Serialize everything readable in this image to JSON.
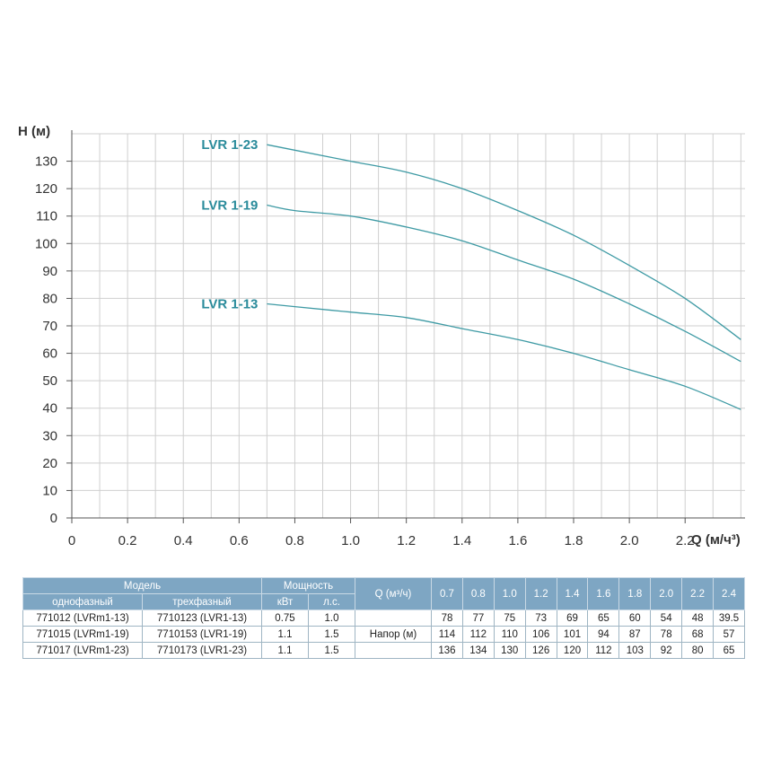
{
  "chart_data": {
    "type": "line",
    "title": "",
    "xlabel": "Q (м/ч³)",
    "ylabel": "H (м)",
    "xlim": [
      0,
      2.4
    ],
    "ylim": [
      0,
      140
    ],
    "x_ticks": [
      "0",
      "0.2",
      "0.4",
      "0.6",
      "0.8",
      "1.0",
      "1.2",
      "1.4",
      "1.6",
      "1.8",
      "2.0",
      "2.2"
    ],
    "y_ticks": [
      "0",
      "10",
      "20",
      "30",
      "40",
      "50",
      "60",
      "70",
      "80",
      "90",
      "100",
      "110",
      "120",
      "130"
    ],
    "grid": true,
    "x": [
      0.7,
      0.8,
      1.0,
      1.2,
      1.4,
      1.6,
      1.8,
      2.0,
      2.2,
      2.4
    ],
    "series": [
      {
        "name": "LVR 1-23",
        "values": [
          136,
          134,
          130,
          126,
          120,
          112,
          103,
          92,
          80,
          65
        ]
      },
      {
        "name": "LVR 1-19",
        "values": [
          114,
          112,
          110,
          106,
          101,
          94,
          87,
          78,
          68,
          57
        ]
      },
      {
        "name": "LVR 1-13",
        "values": [
          78,
          77,
          75,
          73,
          69,
          65,
          60,
          54,
          48,
          39.5
        ]
      }
    ],
    "line_color": "#3e9aa4",
    "label_color": "#2a8b9b",
    "grid_color": "#cfcfcf"
  },
  "table": {
    "model_header": "Модель",
    "single_phase_header": "однофазный",
    "three_phase_header": "трехфазный",
    "power_header": "Мощность",
    "kw_header": "кВт",
    "hp_header": "л.с.",
    "q_header": "Q (м³/ч)",
    "head_label": "Напор (м)",
    "q_values": [
      "0.7",
      "0.8",
      "1.0",
      "1.2",
      "1.4",
      "1.6",
      "1.8",
      "2.0",
      "2.2",
      "2.4"
    ],
    "rows": [
      {
        "single": "771012 (LVRm1-13)",
        "three": "7710123 (LVR1-13)",
        "kw": "0.75",
        "hp": "1.0",
        "heads": [
          "78",
          "77",
          "75",
          "73",
          "69",
          "65",
          "60",
          "54",
          "48",
          "39.5"
        ]
      },
      {
        "single": "771015 (LVRm1-19)",
        "three": "7710153 (LVR1-19)",
        "kw": "1.1",
        "hp": "1.5",
        "heads": [
          "114",
          "112",
          "110",
          "106",
          "101",
          "94",
          "87",
          "78",
          "68",
          "57"
        ]
      },
      {
        "single": "771017 (LVRm1-23)",
        "three": "7710173 (LVR1-23)",
        "kw": "1.1",
        "hp": "1.5",
        "heads": [
          "136",
          "134",
          "130",
          "126",
          "120",
          "112",
          "103",
          "92",
          "80",
          "65"
        ]
      }
    ],
    "header_color": "#7ea6c3",
    "border_color": "#9fb5c3"
  }
}
